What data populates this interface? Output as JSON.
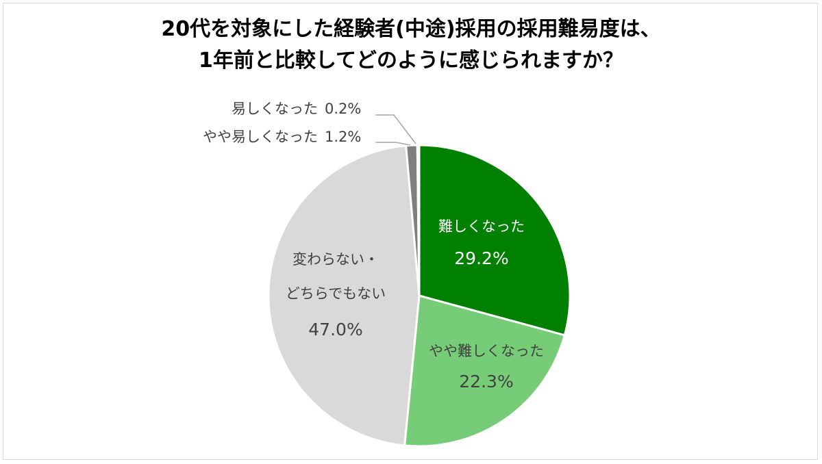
{
  "chart_data": {
    "type": "pie",
    "title_lines": [
      "20代を対象にした経験者(中途)採用の採用難易度は、",
      "1年前と比較してどのように感じられますか？"
    ],
    "slices": [
      {
        "category": "難しくなった",
        "value": 29.2,
        "label": "29.2%",
        "color": "#008000"
      },
      {
        "category": "やや難しくなった",
        "value": 22.3,
        "label": "22.3%",
        "color": "#77cc77"
      },
      {
        "category": "変わらない・どちらでもない",
        "label_lines": [
          "変わらない・",
          "どちらでもない"
        ],
        "value": 47.0,
        "label": "47.0%",
        "color": "#d9d9d9"
      },
      {
        "category": "やや易しくなった",
        "value": 1.2,
        "label": "1.2%",
        "color": "#7f7f7f"
      },
      {
        "category": "易しくなった",
        "value": 0.2,
        "label": "0.2%",
        "color": "#404040"
      }
    ],
    "start_angle": "12 o'clock",
    "direction": "clockwise"
  }
}
